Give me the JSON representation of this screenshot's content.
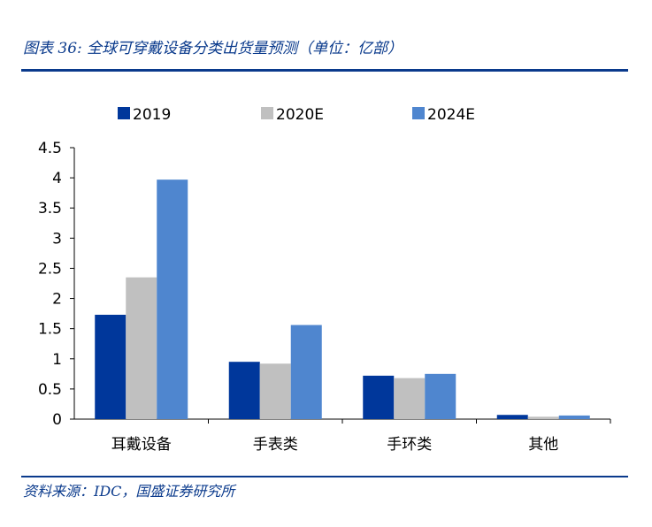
{
  "figure": {
    "title": "图表 36: 全球可穿戴设备分类出货量预测（单位：亿部）",
    "source": "资料来源：IDC，国盛证券研究所"
  },
  "colors": {
    "accent": "#0a3a8c",
    "series_2019": "#00379b",
    "series_2020E": "#c0c0c0",
    "series_2024E": "#4f86cf"
  },
  "chart_data": {
    "type": "bar",
    "categories": [
      "耳戴设备",
      "手表类",
      "手环类",
      "其他"
    ],
    "series": [
      {
        "name": "2019",
        "values": [
          1.73,
          0.95,
          0.72,
          0.07
        ]
      },
      {
        "name": "2020E",
        "values": [
          2.35,
          0.92,
          0.68,
          0.04
        ]
      },
      {
        "name": "2024E",
        "values": [
          3.97,
          1.56,
          0.75,
          0.06
        ]
      }
    ],
    "yticks": [
      "0",
      "0.5",
      "1",
      "1.5",
      "2",
      "2.5",
      "3",
      "3.5",
      "4",
      "4.5"
    ],
    "ylim": [
      0,
      4.5
    ],
    "grid": false,
    "legend_position": "top"
  }
}
